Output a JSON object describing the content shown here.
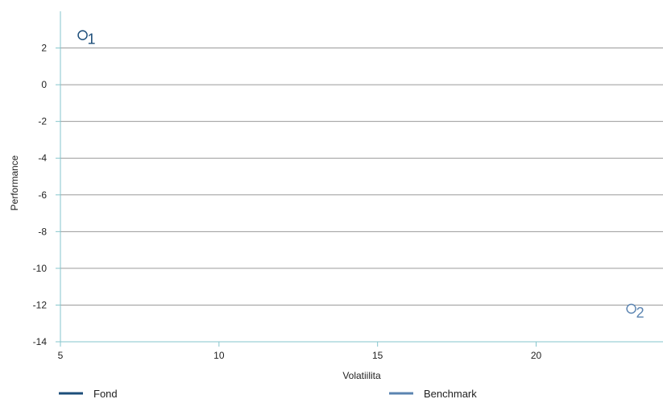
{
  "chart_data": {
    "type": "scatter",
    "xlabel": "Volatiilita",
    "ylabel": "Performance",
    "xlim": [
      5,
      24
    ],
    "ylim": [
      -14,
      4
    ],
    "xticks": [
      5,
      10,
      15,
      20
    ],
    "yticks": [
      2,
      0,
      -2,
      -4,
      -6,
      -8,
      -10,
      -12,
      -14
    ],
    "grid": "horizontal",
    "legend_position": "bottom",
    "series": [
      {
        "name": "Fond",
        "color": "#1d4e7a",
        "points": [
          {
            "x": 5.7,
            "y": 2.7,
            "label": "1"
          }
        ]
      },
      {
        "name": "Benchmark",
        "color": "#5b84b1",
        "points": [
          {
            "x": 23.0,
            "y": -12.2,
            "label": "2"
          }
        ]
      }
    ]
  },
  "colors": {
    "axis": "#86c5cc",
    "grid": "#9a9a9a"
  }
}
